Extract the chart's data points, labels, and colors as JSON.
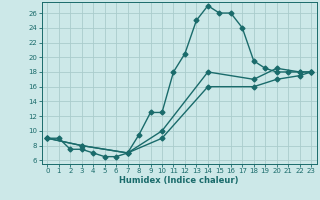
{
  "xlabel": "Humidex (Indice chaleur)",
  "background_color": "#cce8e8",
  "line_color": "#1a6b6b",
  "grid_color": "#aacccc",
  "xlim": [
    -0.5,
    23.5
  ],
  "ylim": [
    5.5,
    27.5
  ],
  "xticks": [
    0,
    1,
    2,
    3,
    4,
    5,
    6,
    7,
    8,
    9,
    10,
    11,
    12,
    13,
    14,
    15,
    16,
    17,
    18,
    19,
    20,
    21,
    22,
    23
  ],
  "yticks": [
    6,
    8,
    10,
    12,
    14,
    16,
    18,
    20,
    22,
    24,
    26
  ],
  "curve1_x": [
    0,
    1,
    2,
    3,
    4,
    5,
    6,
    7,
    8,
    9,
    10,
    11,
    12,
    13,
    14,
    15,
    16,
    17,
    18,
    19,
    20,
    21,
    22,
    23
  ],
  "curve1_y": [
    9,
    9,
    7.5,
    7.5,
    7,
    6.5,
    6.5,
    7,
    9.5,
    12.5,
    12.5,
    18,
    20.5,
    25,
    27,
    26,
    26,
    24,
    19.5,
    18.5,
    18,
    18,
    18,
    18
  ],
  "curve2_x": [
    0,
    3,
    7,
    10,
    14,
    18,
    20,
    22,
    23
  ],
  "curve2_y": [
    9,
    8,
    7,
    10,
    18,
    17,
    18.5,
    18,
    18
  ],
  "curve3_x": [
    0,
    3,
    7,
    10,
    14,
    18,
    20,
    22,
    23
  ],
  "curve3_y": [
    9,
    8,
    7,
    9,
    16,
    16,
    17,
    17.5,
    18
  ],
  "marker": "D",
  "markersize": 2.5,
  "linewidth": 1.0
}
